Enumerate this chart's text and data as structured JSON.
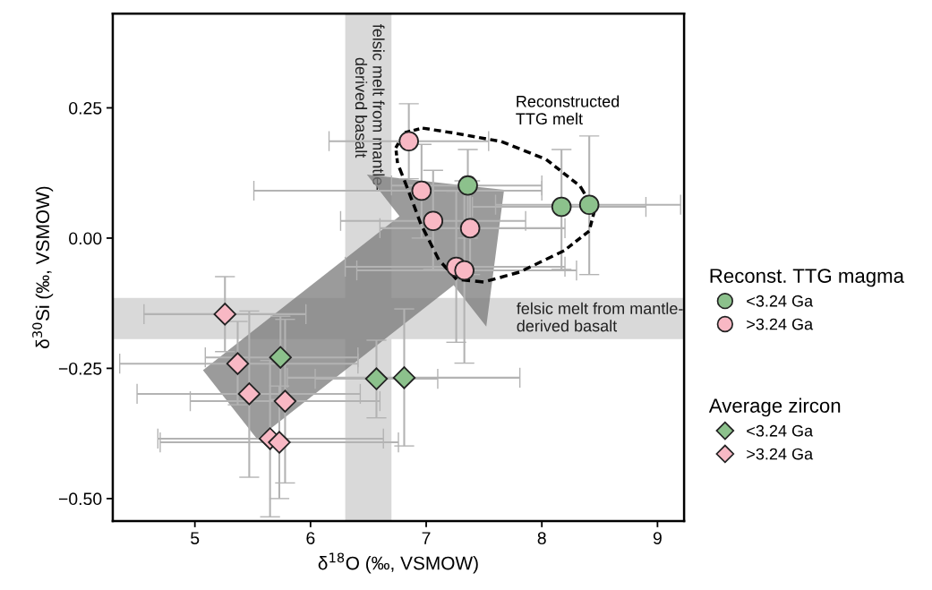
{
  "chart_data": {
    "type": "scatter",
    "xlabel": "δ$^{18}$O (‰, VSMOW)",
    "ylabel": "δ$^{30}$Si (‰, VSMOW)",
    "xlim": [
      4.29,
      9.23
    ],
    "ylim": [
      -0.543,
      0.431
    ],
    "xticks": [
      5,
      6,
      7,
      8,
      9
    ],
    "yticks": [
      {
        "value": -0.5,
        "label": "−0.50"
      },
      {
        "value": -0.25,
        "label": "−0.25"
      },
      {
        "value": 0,
        "label": "0.00"
      },
      {
        "value": 0.25,
        "label": "0.25"
      }
    ],
    "grid": false,
    "legend": "right",
    "legend_title": [
      "Reconst. TTG magma",
      "Average zircon"
    ],
    "bands": [
      {
        "axis": "x",
        "from": 6.3,
        "to": 6.7,
        "label": "felsic melt from mantle-\nderived basalt",
        "color": "#d9d9d9"
      },
      {
        "axis": "y",
        "from": -0.194,
        "to": -0.115,
        "label": "felsic melt from mantle-\nderived basalt",
        "color": "#d9d9d9"
      }
    ],
    "annotations": [
      "Reconstructed\nTTG melt"
    ],
    "series": [
      {
        "name": "<3.24 Ga",
        "color": "#8cc18c",
        "marker": "circle",
        "x": [
          7.36,
          8.17,
          8.41
        ],
        "values": [
          0.101,
          0.06,
          0.064
        ],
        "xerrors": [
          [
            6.7,
            8.0
          ],
          [
            7.4,
            8.9
          ],
          [
            7.6,
            9.2
          ]
        ],
        "errors": [
          [
            0.0,
            0.17
          ],
          [
            -0.06,
            0.17
          ],
          [
            -0.07,
            0.196
          ]
        ]
      },
      {
        "name": ">3.24 Ga",
        "color": "#f8b8c4",
        "marker": "circle",
        "x": [
          6.85,
          6.96,
          7.06,
          7.38,
          7.26,
          7.33
        ],
        "values": [
          0.186,
          0.091,
          0.033,
          0.019,
          -0.055,
          -0.062
        ],
        "xerrors": [
          [
            6.16,
            7.54
          ],
          [
            5.51,
            8.0
          ],
          [
            6.26,
            7.86
          ],
          [
            6.6,
            8.2
          ],
          [
            6.3,
            8.2
          ],
          [
            6.4,
            8.3
          ]
        ],
        "errors": [
          [
            0.114,
            0.258
          ],
          [
            0.0,
            0.18
          ],
          [
            -0.06,
            0.13
          ],
          [
            -0.07,
            0.11
          ],
          [
            -0.2,
            0.09
          ],
          [
            -0.24,
            0.11
          ]
        ]
      },
      {
        "name": "<3.24 Ga",
        "color": "#8cc18c",
        "marker": "diamond",
        "x": [
          5.74,
          6.57,
          6.81
        ],
        "values": [
          -0.229,
          -0.27,
          -0.268
        ],
        "xerrors": [
          [
            5.09,
            6.41
          ],
          [
            6.04,
            7.1
          ],
          [
            5.8,
            7.81
          ]
        ],
        "errors": [
          [
            -0.31,
            -0.15
          ],
          [
            -0.345,
            -0.196
          ],
          [
            -0.399,
            -0.136
          ]
        ]
      },
      {
        "name": ">3.24 Ga",
        "color": "#f8b8c4",
        "marker": "diamond",
        "x": [
          5.26,
          5.37,
          5.47,
          5.78,
          5.65,
          5.73
        ],
        "values": [
          -0.146,
          -0.241,
          -0.299,
          -0.313,
          -0.385,
          -0.392
        ],
        "xerrors": [
          [
            4.56,
            5.96
          ],
          [
            4.35,
            6.41
          ],
          [
            4.5,
            6.43
          ],
          [
            4.96,
            6.6
          ],
          [
            4.68,
            6.63
          ],
          [
            4.7,
            6.76
          ]
        ],
        "errors": [
          [
            -0.218,
            -0.074
          ],
          [
            -0.32,
            -0.16
          ],
          [
            -0.459,
            -0.14
          ],
          [
            -0.47,
            -0.156
          ],
          [
            -0.535,
            -0.235
          ],
          [
            -0.5,
            -0.284
          ]
        ]
      }
    ]
  }
}
